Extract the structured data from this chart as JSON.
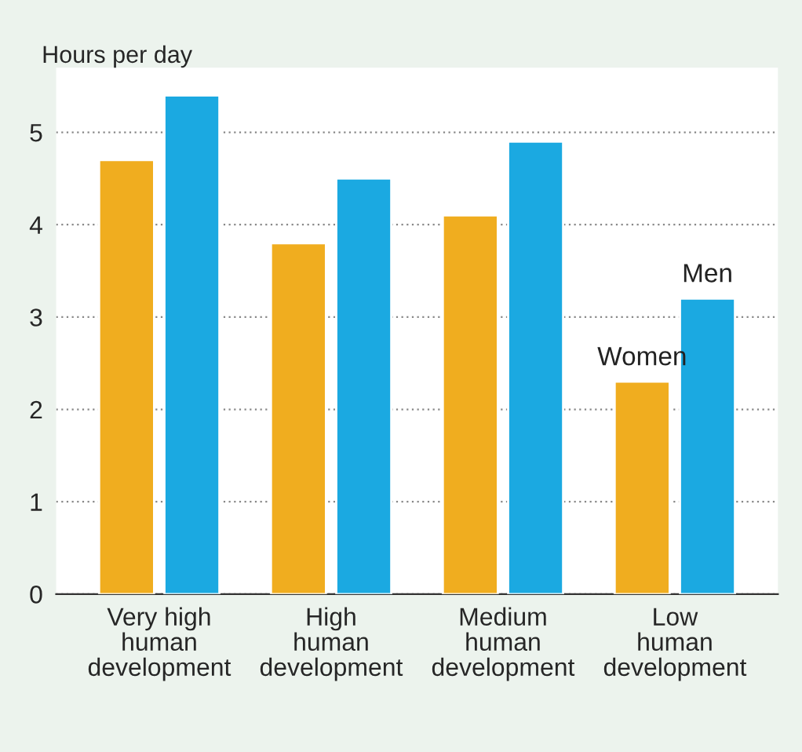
{
  "chart_data": {
    "type": "bar",
    "ylabel": "Hours per day",
    "categories": [
      "Very high\nhuman\ndevelopment",
      "High\nhuman\ndevelopment",
      "Medium\nhuman\ndevelopment",
      "Low\nhuman\ndevelopment"
    ],
    "series": [
      {
        "name": "Women",
        "color": "#f0ad1f",
        "values": [
          4.7,
          3.8,
          4.1,
          2.3
        ]
      },
      {
        "name": "Men",
        "color": "#1ba9e1",
        "values": [
          5.4,
          4.5,
          4.9,
          3.2
        ]
      }
    ],
    "ylim": [
      0,
      5.7
    ],
    "yticks": [
      0,
      1,
      2,
      3,
      4,
      5
    ],
    "grid": "y",
    "legend": false
  }
}
